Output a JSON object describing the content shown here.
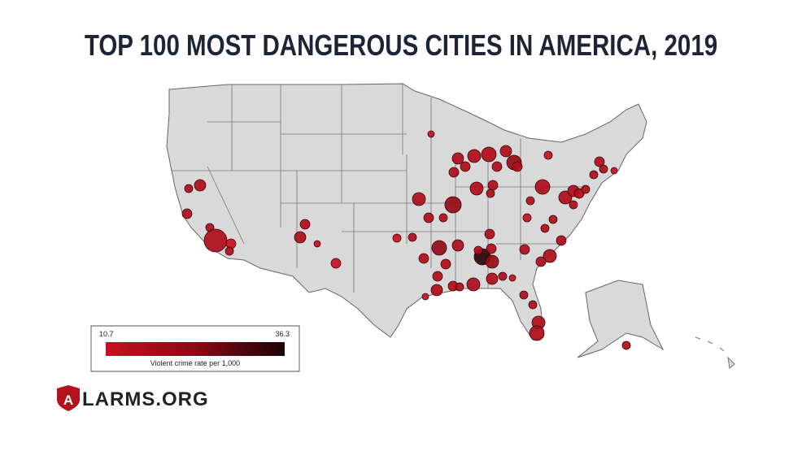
{
  "title": "TOP 100 MOST DANGEROUS CITIES IN AMERICA, 2019",
  "legend": {
    "min": 10.7,
    "max": 36.3,
    "label": "Violent crime rate per 1,000"
  },
  "logo": {
    "mark": "A",
    "text": "LARMS.ORG"
  }
}
